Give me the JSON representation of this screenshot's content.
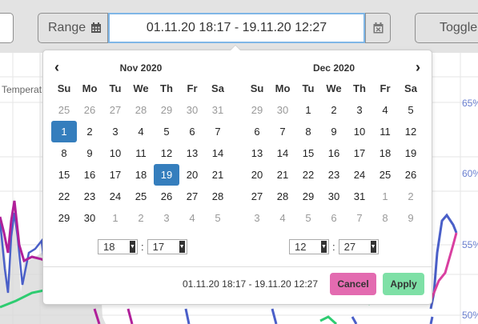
{
  "toolbar": {
    "range_label": "Range",
    "range_value": "01.11.20 18:17 - 19.11.20 12:27",
    "toggle_label": "Toggle"
  },
  "chart_background": {
    "series_label": "Temperat",
    "y_ticks": [
      "65%",
      "60%",
      "55%",
      "50%"
    ],
    "colors": {
      "purple": "#b0209a",
      "blue": "#4a5fc8",
      "pink": "#d93fa0",
      "green": "#2ecc71"
    }
  },
  "picker": {
    "left": {
      "month": "Nov 2020",
      "weekdays": [
        "Su",
        "Mo",
        "Tu",
        "We",
        "Th",
        "Fr",
        "Sa"
      ],
      "days": [
        {
          "d": "25",
          "off": true
        },
        {
          "d": "26",
          "off": true
        },
        {
          "d": "27",
          "off": true
        },
        {
          "d": "28",
          "off": true
        },
        {
          "d": "29",
          "off": true
        },
        {
          "d": "30",
          "off": true
        },
        {
          "d": "31",
          "off": true
        },
        {
          "d": "1",
          "sel": true
        },
        {
          "d": "2"
        },
        {
          "d": "3"
        },
        {
          "d": "4"
        },
        {
          "d": "5"
        },
        {
          "d": "6"
        },
        {
          "d": "7"
        },
        {
          "d": "8"
        },
        {
          "d": "9"
        },
        {
          "d": "10"
        },
        {
          "d": "11"
        },
        {
          "d": "12"
        },
        {
          "d": "13"
        },
        {
          "d": "14"
        },
        {
          "d": "15"
        },
        {
          "d": "16"
        },
        {
          "d": "17"
        },
        {
          "d": "18"
        },
        {
          "d": "19",
          "sel": true
        },
        {
          "d": "20"
        },
        {
          "d": "21"
        },
        {
          "d": "22"
        },
        {
          "d": "23"
        },
        {
          "d": "24"
        },
        {
          "d": "25"
        },
        {
          "d": "26"
        },
        {
          "d": "27"
        },
        {
          "d": "28"
        },
        {
          "d": "29"
        },
        {
          "d": "30"
        },
        {
          "d": "1",
          "off": true
        },
        {
          "d": "2",
          "off": true
        },
        {
          "d": "3",
          "off": true
        },
        {
          "d": "4",
          "off": true
        },
        {
          "d": "5",
          "off": true
        }
      ],
      "hour": "18",
      "minute": "17"
    },
    "right": {
      "month": "Dec 2020",
      "weekdays": [
        "Su",
        "Mo",
        "Tu",
        "We",
        "Th",
        "Fr",
        "Sa"
      ],
      "days": [
        {
          "d": "29",
          "off": true
        },
        {
          "d": "30",
          "off": true
        },
        {
          "d": "1"
        },
        {
          "d": "2"
        },
        {
          "d": "3"
        },
        {
          "d": "4"
        },
        {
          "d": "5"
        },
        {
          "d": "6"
        },
        {
          "d": "7"
        },
        {
          "d": "8"
        },
        {
          "d": "9"
        },
        {
          "d": "10"
        },
        {
          "d": "11"
        },
        {
          "d": "12"
        },
        {
          "d": "13"
        },
        {
          "d": "14"
        },
        {
          "d": "15"
        },
        {
          "d": "16"
        },
        {
          "d": "17"
        },
        {
          "d": "18"
        },
        {
          "d": "19"
        },
        {
          "d": "20"
        },
        {
          "d": "21"
        },
        {
          "d": "22"
        },
        {
          "d": "23"
        },
        {
          "d": "24"
        },
        {
          "d": "25"
        },
        {
          "d": "26"
        },
        {
          "d": "27"
        },
        {
          "d": "28"
        },
        {
          "d": "29"
        },
        {
          "d": "30"
        },
        {
          "d": "31"
        },
        {
          "d": "1",
          "off": true
        },
        {
          "d": "2",
          "off": true
        },
        {
          "d": "3",
          "off": true
        },
        {
          "d": "4",
          "off": true
        },
        {
          "d": "5",
          "off": true
        },
        {
          "d": "6",
          "off": true
        },
        {
          "d": "7",
          "off": true
        },
        {
          "d": "8",
          "off": true
        },
        {
          "d": "9",
          "off": true
        }
      ],
      "hour": "12",
      "minute": "27"
    },
    "time_separator": ":",
    "footer_range": "01.11.20 18:17 - 19.11.20 12:27",
    "cancel_label": "Cancel",
    "apply_label": "Apply"
  }
}
